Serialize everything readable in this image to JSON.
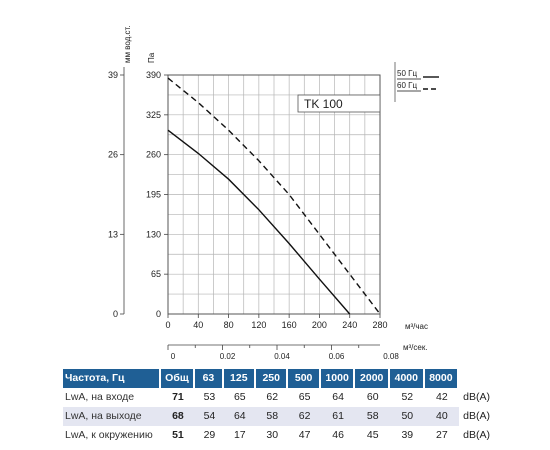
{
  "chart_data": {
    "type": "line",
    "model_label": "TK 100",
    "y_unit_mm": "мм вод.ст.",
    "y_unit_pa": "Па",
    "x_unit_m3h": "м³/час",
    "x_unit_m3s": "м³/сек.",
    "x_ticks": [
      "0",
      "40",
      "80",
      "120",
      "160",
      "200",
      "240",
      "280"
    ],
    "y_ticks": [
      "65",
      "130",
      "195",
      "260",
      "325",
      "390"
    ],
    "y_zero_label": "0",
    "mm_ticks": [
      "0",
      "13",
      "26",
      "39"
    ],
    "m3s_ticks": [
      "0",
      "0.02",
      "0.04",
      "0.06",
      "0.08"
    ],
    "xlim": [
      0,
      280
    ],
    "ylim": [
      0,
      390
    ],
    "m3s_lim": [
      0,
      0.0778
    ],
    "series": [
      {
        "name": "50 Гц",
        "style": "solid",
        "x": [
          0,
          40,
          80,
          120,
          160,
          200,
          240
        ],
        "y": [
          300,
          262,
          220,
          170,
          115,
          57,
          0
        ]
      },
      {
        "name": "60 Гц",
        "style": "dashed",
        "x": [
          0,
          40,
          80,
          120,
          160,
          200,
          240,
          280
        ],
        "y": [
          385,
          345,
          300,
          250,
          195,
          130,
          65,
          0
        ]
      }
    ]
  },
  "sound_table": {
    "headers": [
      "Частота, Гц",
      "Общ",
      "63",
      "125",
      "250",
      "500",
      "1000",
      "2000",
      "4000",
      "8000"
    ],
    "rows": [
      {
        "label": "LwA, на входе",
        "total": "71",
        "values": [
          "53",
          "65",
          "62",
          "65",
          "64",
          "60",
          "52",
          "42"
        ],
        "unit": "dB(A)"
      },
      {
        "label": "LwA, на выходе",
        "total": "68",
        "values": [
          "54",
          "64",
          "58",
          "62",
          "61",
          "58",
          "50",
          "40"
        ],
        "unit": "dB(A)"
      },
      {
        "label": "LwA, к окружению",
        "total": "51",
        "values": [
          "29",
          "17",
          "30",
          "47",
          "46",
          "45",
          "39",
          "27"
        ],
        "unit": "dB(A)"
      }
    ]
  }
}
